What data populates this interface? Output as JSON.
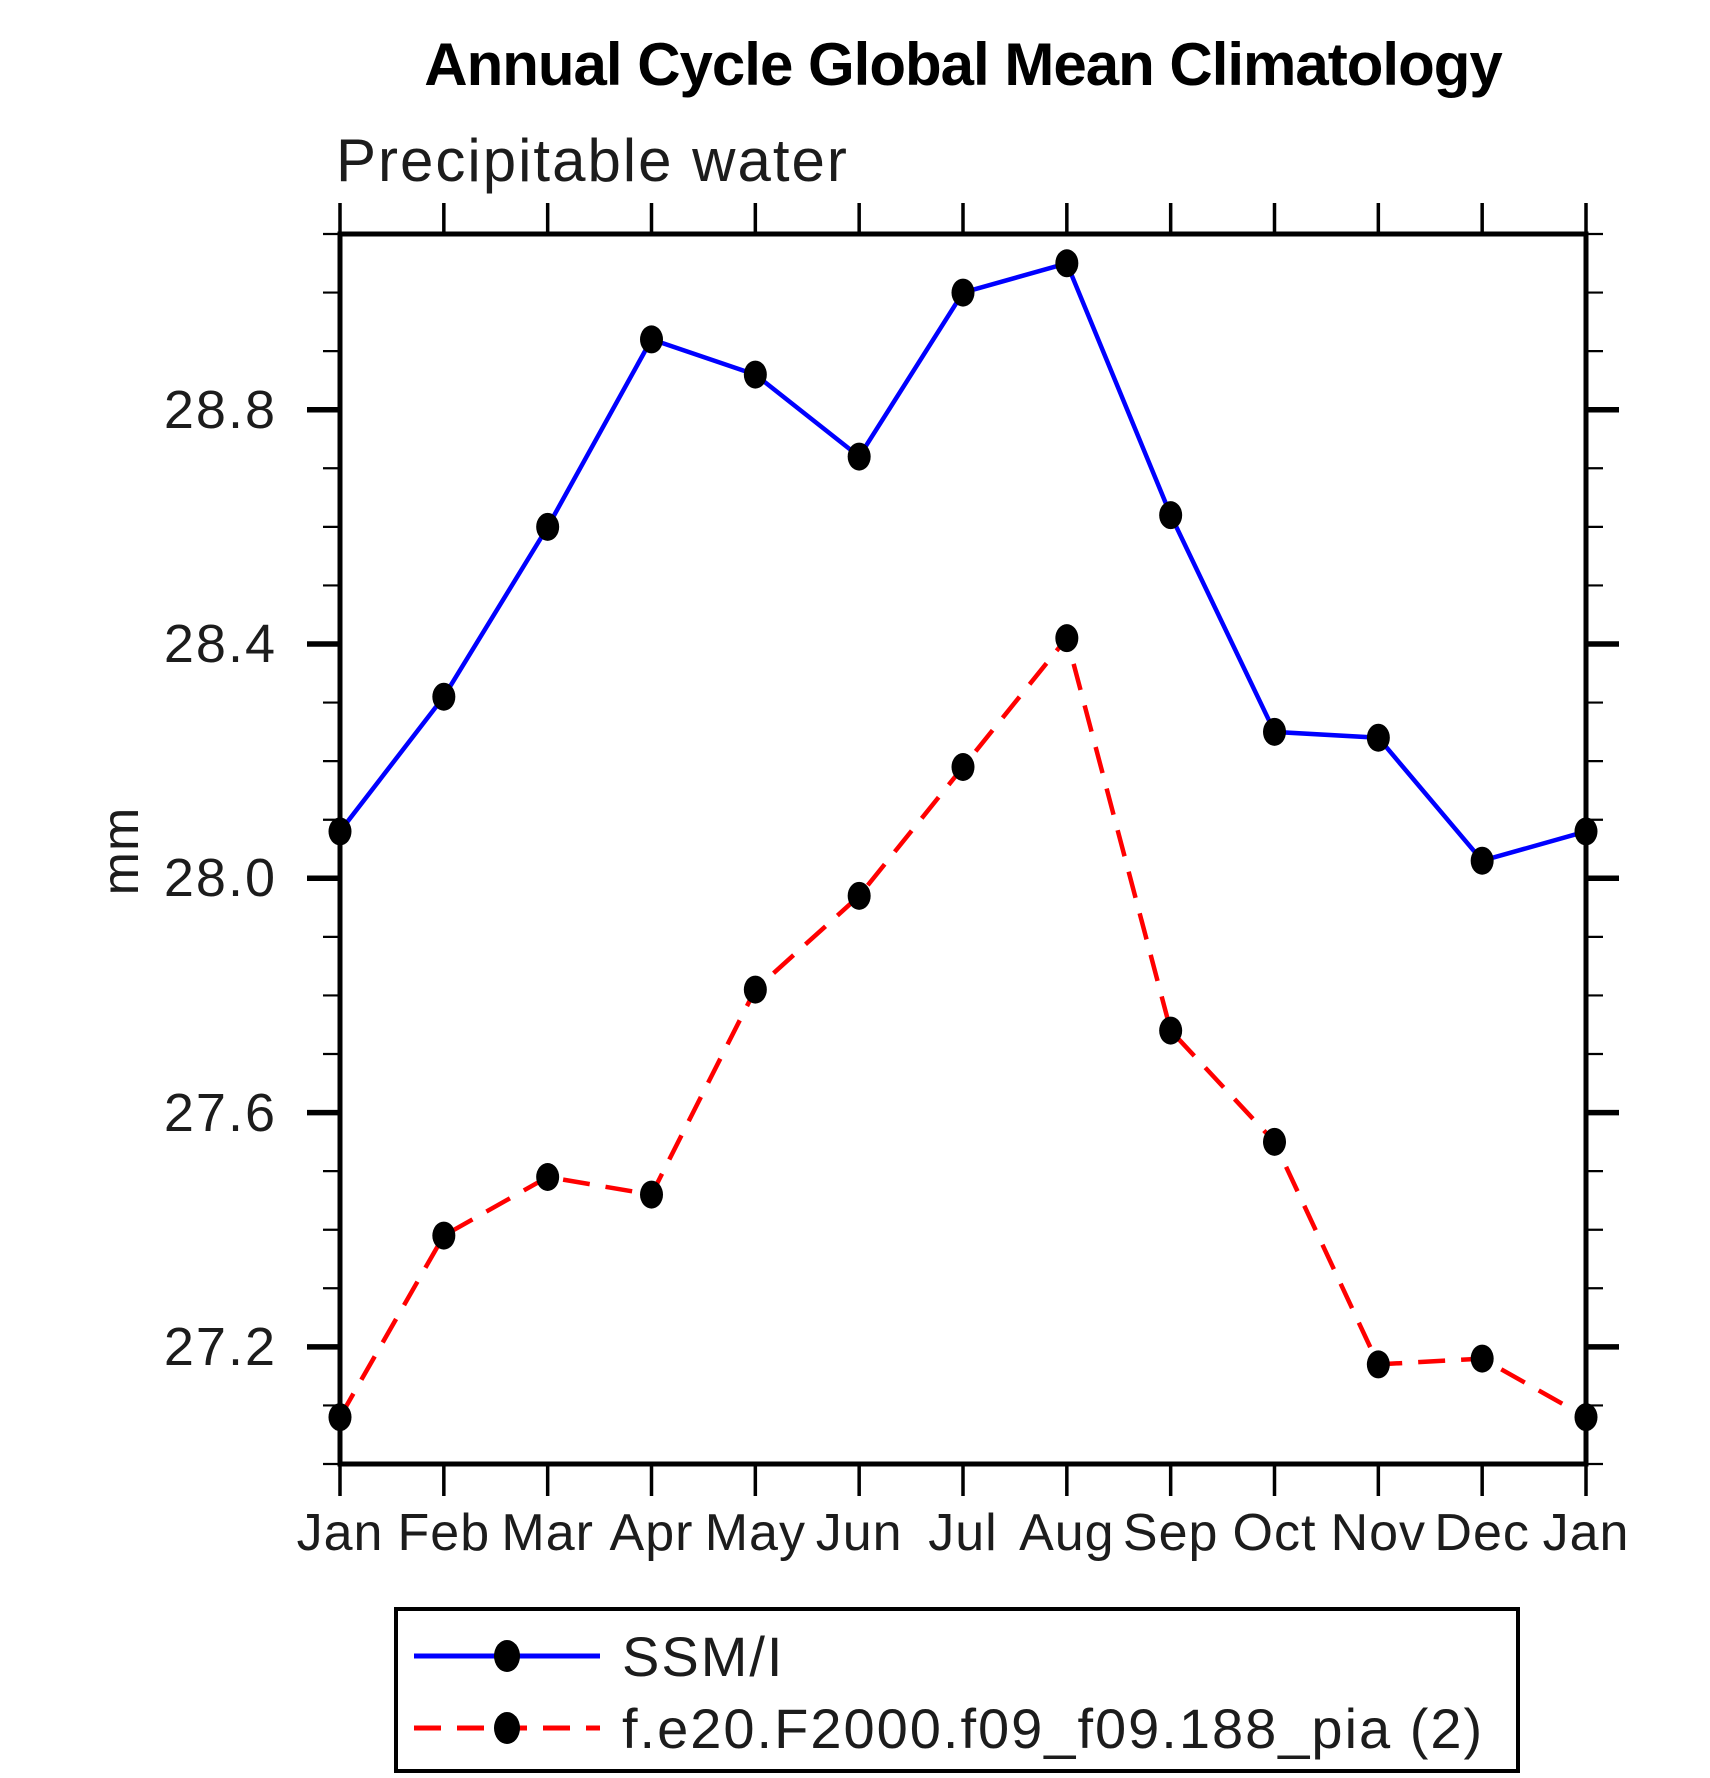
{
  "title": "Annual Cycle Global Mean Climatology",
  "subtitle": "Precipitable water",
  "y_axis_title": "mm",
  "chart_data": {
    "type": "line",
    "x_categories": [
      "Jan",
      "Feb",
      "Mar",
      "Apr",
      "May",
      "Jun",
      "Jul",
      "Aug",
      "Sep",
      "Oct",
      "Nov",
      "Dec",
      "Jan"
    ],
    "ylabel": "mm",
    "ylim": [
      27.0,
      29.1
    ],
    "y_major_ticks": [
      27.2,
      27.6,
      28.0,
      28.4,
      28.8
    ],
    "y_minor_tick_step": 0.1,
    "grid": false,
    "legend_position": "bottom",
    "series": [
      {
        "name": "SSM/I",
        "line_color": "#0000ff",
        "line_style": "solid",
        "marker": "filled-circle",
        "marker_color": "#000000",
        "values": [
          28.08,
          28.31,
          28.6,
          28.92,
          28.86,
          28.72,
          29.0,
          29.05,
          28.62,
          28.25,
          28.24,
          28.03,
          28.08
        ]
      },
      {
        "name": "f.e20.F2000.f09_f09.188_pia (2)",
        "line_color": "#ff0000",
        "line_style": "dashed",
        "marker": "filled-circle",
        "marker_color": "#000000",
        "values": [
          27.08,
          27.39,
          27.49,
          27.46,
          27.81,
          27.97,
          28.19,
          28.41,
          27.74,
          27.55,
          27.17,
          27.18,
          27.08
        ]
      }
    ]
  }
}
